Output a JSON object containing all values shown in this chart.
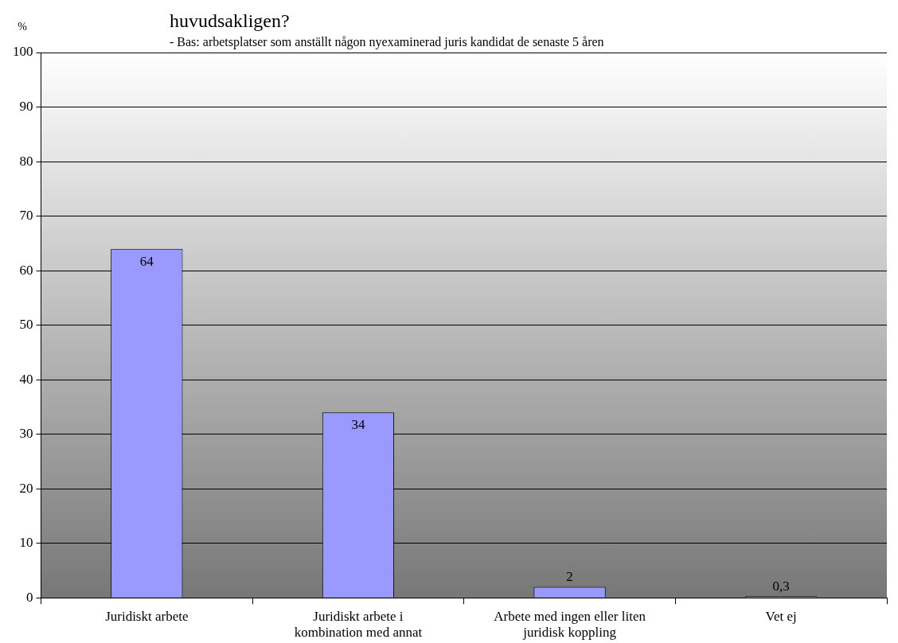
{
  "chart_data": {
    "type": "bar",
    "title": "huvudsakligen?",
    "subtitle": "- Bas: arbetsplatser som anställt någon nyexaminerad juris kandidat de senaste 5 åren",
    "ylabel": "%",
    "categories": [
      "Juridiskt arbete",
      "Juridiskt arbete i kombination med annat",
      "Arbete med ingen eller liten juridisk koppling",
      "Vet ej"
    ],
    "values": [
      64,
      34,
      2,
      0.3
    ],
    "value_labels": [
      "64",
      "34",
      "2",
      "0,3"
    ],
    "color": "#9999ff",
    "ylim": [
      0,
      100
    ],
    "yticks": [
      0,
      10,
      20,
      30,
      40,
      50,
      60,
      70,
      80,
      90,
      100
    ],
    "grid": "y",
    "legend": false
  }
}
